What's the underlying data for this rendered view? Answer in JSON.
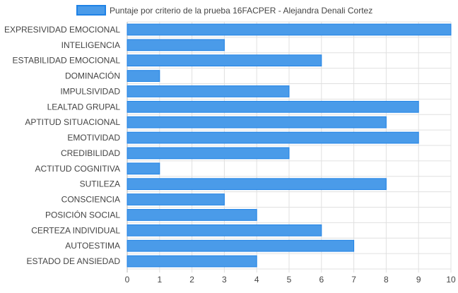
{
  "chart_data": {
    "type": "bar",
    "orientation": "horizontal",
    "categories": [
      "EXPRESIVIDAD EMOCIONAL",
      "INTELIGENCIA",
      "ESTABILIDAD EMOCIONAL",
      "DOMINACIÓN",
      "IMPULSIVIDAD",
      "LEALTAD GRUPAL",
      "APTITUD SITUACIONAL",
      "EMOTIVIDAD",
      "CREDIBILIDAD",
      "ACTITUD COGNITIVA",
      "SUTILEZA",
      "CONSCIENCIA",
      "POSICIÓN SOCIAL",
      "CERTEZA INDIVIDUAL",
      "AUTOESTIMA",
      "ESTADO DE ANSIEDAD"
    ],
    "series": [
      {
        "name": "Puntaje por criterio de la prueba 16FACPER - Alejandra Denali Cortez",
        "values": [
          10,
          3,
          6,
          1,
          5,
          9,
          8,
          9,
          5,
          1,
          8,
          3,
          4,
          6,
          7,
          4
        ]
      }
    ],
    "xlim": [
      0,
      10
    ],
    "xticks": [
      "0",
      "1",
      "2",
      "3",
      "4",
      "5",
      "6",
      "7",
      "8",
      "9",
      "10"
    ],
    "grid": true,
    "legend_position": "top",
    "colors": {
      "bar_fill": "#4a9be9",
      "bar_stroke": "#1f82e6",
      "grid": "#e0e0e0",
      "axis": "#b9b9b9",
      "text": "#444444"
    }
  }
}
